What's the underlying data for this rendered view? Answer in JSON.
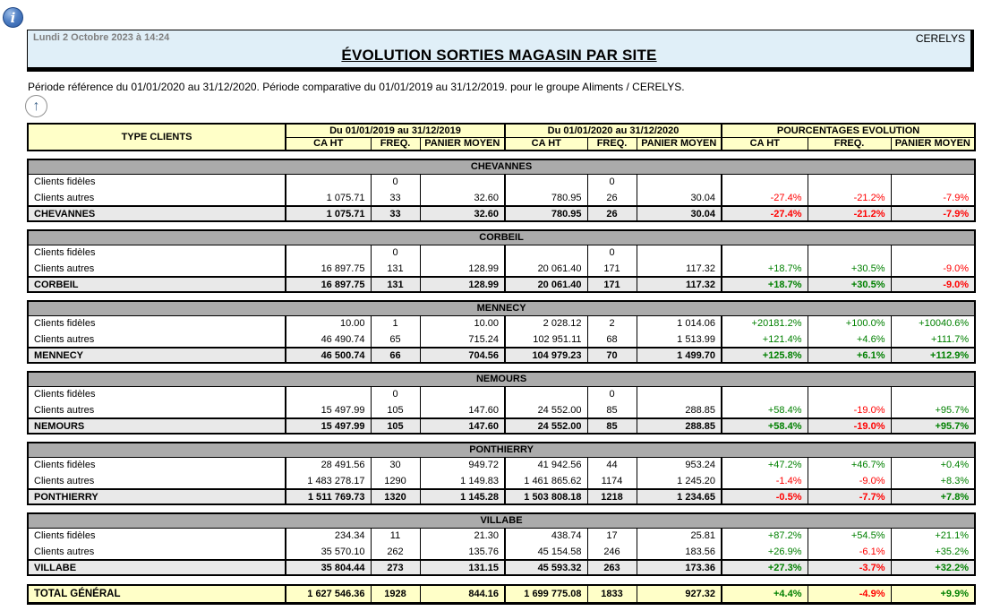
{
  "header": {
    "timestamp": "Lundi 2 Octobre 2023 à 14:24",
    "company": "CERELYS",
    "title": "ÉVOLUTION SORTIES MAGASIN PAR SITE"
  },
  "period_text": "Période référence du 01/01/2020 au 31/12/2020. Période comparative du 01/01/2019 au 31/12/2019. pour le groupe  Aliments / CERELYS.",
  "icons": {
    "info_glyph": "i",
    "up_arrow_glyph": "↑"
  },
  "table": {
    "corner_label": "TYPE CLIENTS",
    "groups": [
      "Du 01/01/2019 au 31/12/2019",
      "Du 01/01/2020 au 31/12/2020",
      "POURCENTAGES EVOLUTION"
    ],
    "sub_headers": [
      "CA HT",
      "FREQ.",
      "PANIER MOYEN"
    ],
    "sections": [
      {
        "site": "CHEVANNES",
        "rows": [
          {
            "label": "Clients fidèles",
            "cells": [
              "",
              "0",
              "",
              "",
              "0",
              "",
              "",
              "",
              ""
            ]
          },
          {
            "label": "Clients autres",
            "cells": [
              "1 075.71",
              "33",
              "32.60",
              "780.95",
              "26",
              "30.04",
              "-27.4%",
              "-21.2%",
              "-7.9%"
            ]
          }
        ],
        "total": {
          "label": "CHEVANNES",
          "cells": [
            "1 075.71",
            "33",
            "32.60",
            "780.95",
            "26",
            "30.04",
            "-27.4%",
            "-21.2%",
            "-7.9%"
          ]
        }
      },
      {
        "site": "CORBEIL",
        "rows": [
          {
            "label": "Clients fidèles",
            "cells": [
              "",
              "0",
              "",
              "",
              "0",
              "",
              "",
              "",
              ""
            ]
          },
          {
            "label": "Clients autres",
            "cells": [
              "16 897.75",
              "131",
              "128.99",
              "20 061.40",
              "171",
              "117.32",
              "+18.7%",
              "+30.5%",
              "-9.0%"
            ]
          }
        ],
        "total": {
          "label": "CORBEIL",
          "cells": [
            "16 897.75",
            "131",
            "128.99",
            "20 061.40",
            "171",
            "117.32",
            "+18.7%",
            "+30.5%",
            "-9.0%"
          ]
        }
      },
      {
        "site": "MENNECY",
        "rows": [
          {
            "label": "Clients fidèles",
            "cells": [
              "10.00",
              "1",
              "10.00",
              "2 028.12",
              "2",
              "1 014.06",
              "+20181.2%",
              "+100.0%",
              "+10040.6%"
            ]
          },
          {
            "label": "Clients autres",
            "cells": [
              "46 490.74",
              "65",
              "715.24",
              "102 951.11",
              "68",
              "1 513.99",
              "+121.4%",
              "+4.6%",
              "+111.7%"
            ]
          }
        ],
        "total": {
          "label": "MENNECY",
          "cells": [
            "46 500.74",
            "66",
            "704.56",
            "104 979.23",
            "70",
            "1 499.70",
            "+125.8%",
            "+6.1%",
            "+112.9%"
          ]
        }
      },
      {
        "site": "NEMOURS",
        "rows": [
          {
            "label": "Clients fidèles",
            "cells": [
              "",
              "0",
              "",
              "",
              "0",
              "",
              "",
              "",
              ""
            ]
          },
          {
            "label": "Clients autres",
            "cells": [
              "15 497.99",
              "105",
              "147.60",
              "24 552.00",
              "85",
              "288.85",
              "+58.4%",
              "-19.0%",
              "+95.7%"
            ]
          }
        ],
        "total": {
          "label": "NEMOURS",
          "cells": [
            "15 497.99",
            "105",
            "147.60",
            "24 552.00",
            "85",
            "288.85",
            "+58.4%",
            "-19.0%",
            "+95.7%"
          ]
        }
      },
      {
        "site": "PONTHIERRY",
        "rows": [
          {
            "label": "Clients fidèles",
            "cells": [
              "28 491.56",
              "30",
              "949.72",
              "41 942.56",
              "44",
              "953.24",
              "+47.2%",
              "+46.7%",
              "+0.4%"
            ]
          },
          {
            "label": "Clients autres",
            "cells": [
              "1 483 278.17",
              "1290",
              "1 149.83",
              "1 461 865.62",
              "1174",
              "1 245.20",
              "-1.4%",
              "-9.0%",
              "+8.3%"
            ]
          }
        ],
        "total": {
          "label": "PONTHIERRY",
          "cells": [
            "1 511 769.73",
            "1320",
            "1 145.28",
            "1 503 808.18",
            "1218",
            "1 234.65",
            "-0.5%",
            "-7.7%",
            "+7.8%"
          ]
        }
      },
      {
        "site": "VILLABE",
        "rows": [
          {
            "label": "Clients fidèles",
            "cells": [
              "234.34",
              "11",
              "21.30",
              "438.74",
              "17",
              "25.81",
              "+87.2%",
              "+54.5%",
              "+21.1%"
            ]
          },
          {
            "label": "Clients autres",
            "cells": [
              "35 570.10",
              "262",
              "135.76",
              "45 154.58",
              "246",
              "183.56",
              "+26.9%",
              "-6.1%",
              "+35.2%"
            ]
          }
        ],
        "total": {
          "label": "VILLABE",
          "cells": [
            "35 804.44",
            "273",
            "131.15",
            "45 593.32",
            "263",
            "173.36",
            "+27.3%",
            "-3.7%",
            "+32.2%"
          ]
        }
      }
    ],
    "grand_total": {
      "label": "TOTAL GÉNÉRAL",
      "cells": [
        "1 627 546.36",
        "1928",
        "844.16",
        "1 699 775.08",
        "1833",
        "927.32",
        "+4.4%",
        "-4.9%",
        "+9.9%"
      ]
    }
  },
  "colors": {
    "positive": "#008000",
    "negative": "#FF0000",
    "header_yellow": "#FFFFC8",
    "site_bar_gray": "#ABABAB",
    "total_row_gray": "#E9E9E9",
    "header_box_blue": "#E0EFF8"
  }
}
